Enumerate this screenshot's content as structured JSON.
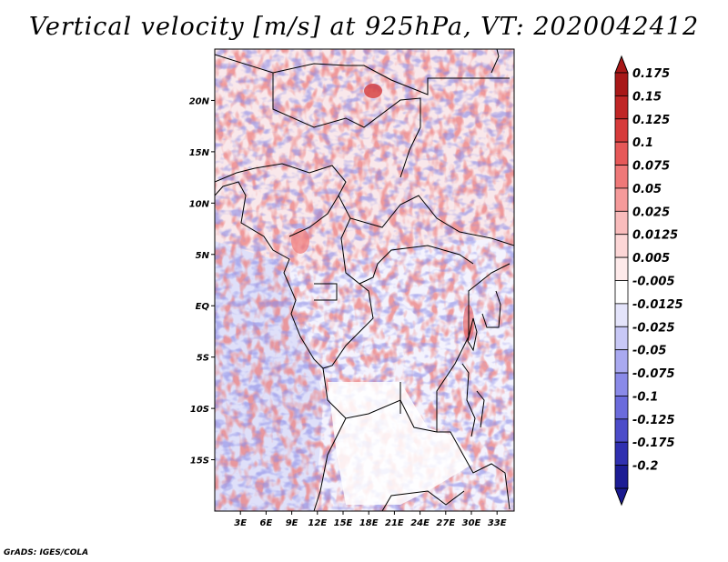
{
  "title": "Vertical velocity [m/s] at 925hPa, VT: 2020042412",
  "footer": "GrADS: IGES/COLA",
  "map": {
    "lon_range": [
      0,
      35
    ],
    "lat_range": [
      -20,
      25
    ],
    "lat_ticks": [
      {
        "value": 20,
        "label": "20N"
      },
      {
        "value": 15,
        "label": "15N"
      },
      {
        "value": 10,
        "label": "10N"
      },
      {
        "value": 5,
        "label": "5N"
      },
      {
        "value": 0,
        "label": "EQ"
      },
      {
        "value": -5,
        "label": "5S"
      },
      {
        "value": -10,
        "label": "10S"
      },
      {
        "value": -15,
        "label": "15S"
      }
    ],
    "lon_ticks": [
      {
        "value": 3,
        "label": "3E"
      },
      {
        "value": 6,
        "label": "6E"
      },
      {
        "value": 9,
        "label": "9E"
      },
      {
        "value": 12,
        "label": "12E"
      },
      {
        "value": 15,
        "label": "15E"
      },
      {
        "value": 18,
        "label": "18E"
      },
      {
        "value": 21,
        "label": "21E"
      },
      {
        "value": 24,
        "label": "24E"
      },
      {
        "value": 27,
        "label": "27E"
      },
      {
        "value": 30,
        "label": "30E"
      },
      {
        "value": 33,
        "label": "33E"
      }
    ]
  },
  "colorbar": {
    "levels": [
      {
        "label": "0.175",
        "color": "#a81818"
      },
      {
        "label": "0.15",
        "color": "#c02626"
      },
      {
        "label": "0.125",
        "color": "#d63b3b"
      },
      {
        "label": "0.1",
        "color": "#e65858"
      },
      {
        "label": "0.075",
        "color": "#ef7878"
      },
      {
        "label": "0.05",
        "color": "#f59a9a"
      },
      {
        "label": "0.025",
        "color": "#f9bcbc"
      },
      {
        "label": "0.0125",
        "color": "#fcd6d6"
      },
      {
        "label": "0.005",
        "color": "#feeaea"
      },
      {
        "label": "-0.005",
        "color": "#ffffff"
      },
      {
        "label": "-0.0125",
        "color": "#e4e4fb"
      },
      {
        "label": "-0.025",
        "color": "#c8c8f6"
      },
      {
        "label": "-0.05",
        "color": "#a9a9f0"
      },
      {
        "label": "-0.075",
        "color": "#8a8ae8"
      },
      {
        "label": "-0.1",
        "color": "#6b6bdc"
      },
      {
        "label": "-0.125",
        "color": "#4c4cc9"
      },
      {
        "label": "-0.175",
        "color": "#3030b0"
      },
      {
        "label": "-0.2",
        "color": "#1c1c94"
      }
    ],
    "below_color": "#1a1a90"
  }
}
